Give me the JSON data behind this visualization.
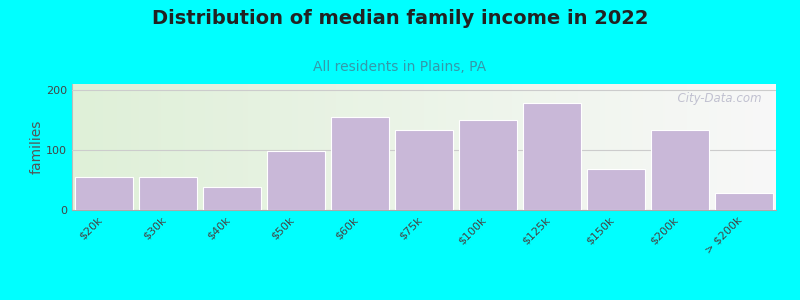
{
  "title": "Distribution of median family income in 2022",
  "subtitle": "All residents in Plains, PA",
  "ylabel": "families",
  "background_outer": "#00FFFF",
  "bar_color": "#c9b8d8",
  "bar_edgecolor": "#ffffff",
  "grid_color": "#cccccc",
  "categories": [
    "$20k",
    "$30k",
    "$40k",
    "$50k",
    "$60k",
    "$75k",
    "$100k",
    "$125k",
    "$150k",
    "$200k",
    "> $200k"
  ],
  "values": [
    55,
    55,
    38,
    98,
    155,
    133,
    150,
    178,
    68,
    133,
    28
  ],
  "ylim": [
    0,
    210
  ],
  "yticks": [
    0,
    100,
    200
  ],
  "watermark": "  City-Data.com",
  "title_fontsize": 14,
  "subtitle_fontsize": 10,
  "ylabel_fontsize": 10,
  "tick_fontsize": 8
}
